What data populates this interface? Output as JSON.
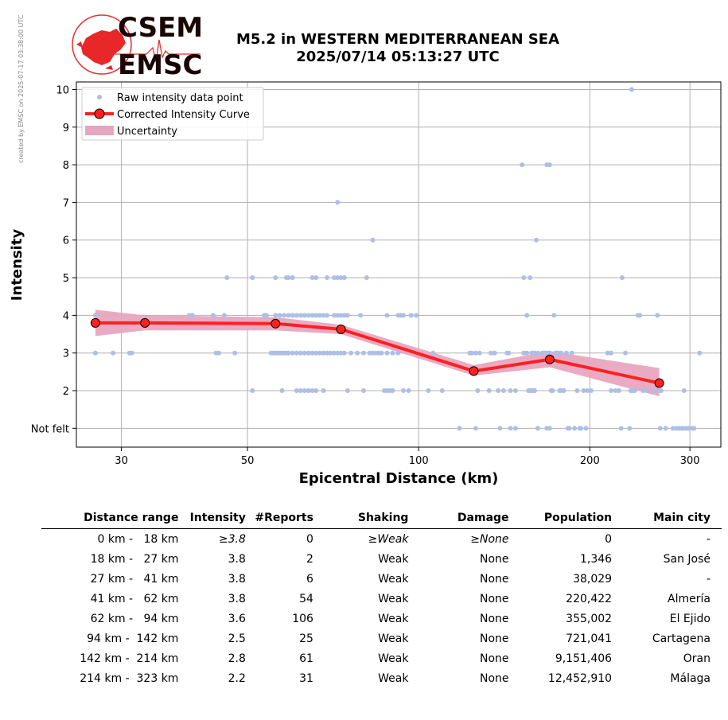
{
  "side_note": "created by EMSC on 2025-07-17 03:38:00 UTC",
  "logo": {
    "top_text": "CSEM",
    "bottom_text": "EMSC"
  },
  "title": {
    "line1": "M5.2 in WESTERN MEDITERRANEAN SEA",
    "line2": "2025/07/14 05:13:27 UTC"
  },
  "colors": {
    "raw": "#aebfe6",
    "curve": "#ff2020",
    "uncertainty": "#e7a6c0",
    "grid": "#b0b0b0"
  },
  "chart_data": {
    "type": "scatter",
    "x_scale": "log",
    "xlabel": "Epicentral Distance (km)",
    "ylabel": "Intensity",
    "xlim": [
      25,
      340
    ],
    "ylim": [
      0.5,
      10.2
    ],
    "xticks": [
      30,
      50,
      100,
      200,
      300
    ],
    "yticks": [
      {
        "v": 1,
        "label": "Not felt"
      },
      {
        "v": 2,
        "label": "2"
      },
      {
        "v": 3,
        "label": "3"
      },
      {
        "v": 4,
        "label": "4"
      },
      {
        "v": 5,
        "label": "5"
      },
      {
        "v": 6,
        "label": "6"
      },
      {
        "v": 7,
        "label": "7"
      },
      {
        "v": 8,
        "label": "8"
      },
      {
        "v": 9,
        "label": "9"
      },
      {
        "v": 10,
        "label": "10"
      }
    ],
    "grid": true,
    "legend": {
      "position": "top-left",
      "entries": [
        "Raw intensity data point",
        "Corrected Intensity Curve",
        "Uncertainty"
      ]
    },
    "curve": {
      "name": "Corrected Intensity Curve",
      "points": [
        [
          27,
          3.8
        ],
        [
          33,
          3.8
        ],
        [
          56,
          3.78
        ],
        [
          73,
          3.63
        ],
        [
          125,
          2.52
        ],
        [
          170,
          2.83
        ],
        [
          265,
          2.2
        ]
      ]
    },
    "uncertainty": {
      "name": "Uncertainty",
      "upper": [
        [
          27,
          4.15
        ],
        [
          33,
          4.0
        ],
        [
          56,
          3.95
        ],
        [
          73,
          3.75
        ],
        [
          125,
          2.68
        ],
        [
          170,
          3.05
        ],
        [
          265,
          2.6
        ]
      ],
      "lower": [
        [
          27,
          3.45
        ],
        [
          33,
          3.6
        ],
        [
          56,
          3.6
        ],
        [
          73,
          3.5
        ],
        [
          125,
          2.4
        ],
        [
          170,
          2.62
        ],
        [
          265,
          1.85
        ]
      ]
    },
    "raw_points": [
      [
        27,
        4
      ],
      [
        27,
        3
      ],
      [
        29,
        3
      ],
      [
        31,
        3
      ],
      [
        31.3,
        3
      ],
      [
        39.5,
        4
      ],
      [
        40,
        4
      ],
      [
        43.5,
        4
      ],
      [
        44,
        3
      ],
      [
        44.5,
        3
      ],
      [
        45.5,
        4
      ],
      [
        46,
        5
      ],
      [
        47.5,
        3
      ],
      [
        51,
        5
      ],
      [
        51,
        2
      ],
      [
        53.5,
        4
      ],
      [
        54,
        4
      ],
      [
        55,
        3
      ],
      [
        55.5,
        3
      ],
      [
        56,
        3
      ],
      [
        56.5,
        3
      ],
      [
        57,
        3
      ],
      [
        57.5,
        3
      ],
      [
        58,
        3
      ],
      [
        58.5,
        3
      ],
      [
        56,
        4
      ],
      [
        57,
        4
      ],
      [
        58,
        4
      ],
      [
        59,
        4
      ],
      [
        60,
        4
      ],
      [
        56,
        5
      ],
      [
        57.5,
        2
      ],
      [
        58.5,
        5
      ],
      [
        59,
        5
      ],
      [
        60,
        5
      ],
      [
        59,
        3
      ],
      [
        60,
        3
      ],
      [
        61,
        3
      ],
      [
        60,
        4
      ],
      [
        61,
        4
      ],
      [
        62,
        4
      ],
      [
        61,
        2
      ],
      [
        62,
        2
      ],
      [
        63,
        2
      ],
      [
        64,
        2
      ],
      [
        65,
        2
      ],
      [
        66,
        2
      ],
      [
        68,
        2
      ],
      [
        62,
        3
      ],
      [
        63,
        3
      ],
      [
        64,
        3
      ],
      [
        65,
        3
      ],
      [
        66,
        3
      ],
      [
        67,
        3
      ],
      [
        68,
        3
      ],
      [
        69,
        3
      ],
      [
        63,
        4
      ],
      [
        64,
        4
      ],
      [
        65,
        4
      ],
      [
        66,
        4
      ],
      [
        67,
        4
      ],
      [
        68,
        4
      ],
      [
        69,
        4
      ],
      [
        65,
        5
      ],
      [
        66,
        5
      ],
      [
        69,
        5
      ],
      [
        70,
        3
      ],
      [
        71,
        3
      ],
      [
        72,
        3
      ],
      [
        73,
        3
      ],
      [
        74,
        3
      ],
      [
        71,
        4
      ],
      [
        72,
        4
      ],
      [
        73,
        4
      ],
      [
        74,
        4
      ],
      [
        75,
        4
      ],
      [
        71,
        5
      ],
      [
        72,
        5
      ],
      [
        73,
        5
      ],
      [
        74,
        5
      ],
      [
        72,
        7
      ],
      [
        75,
        2
      ],
      [
        76,
        3
      ],
      [
        78,
        3
      ],
      [
        80,
        3
      ],
      [
        79,
        4
      ],
      [
        80,
        2
      ],
      [
        81,
        5
      ],
      [
        82,
        3
      ],
      [
        83,
        3
      ],
      [
        84,
        3
      ],
      [
        83,
        6
      ],
      [
        85,
        3
      ],
      [
        86,
        3
      ],
      [
        87,
        2
      ],
      [
        88,
        2
      ],
      [
        89,
        2
      ],
      [
        90,
        2
      ],
      [
        88,
        3
      ],
      [
        90,
        3
      ],
      [
        92,
        3
      ],
      [
        88,
        4
      ],
      [
        92,
        4
      ],
      [
        93,
        4
      ],
      [
        94,
        4
      ],
      [
        94,
        2
      ],
      [
        96,
        2
      ],
      [
        97,
        4
      ],
      [
        99,
        4
      ],
      [
        104,
        2
      ],
      [
        106,
        3
      ],
      [
        110,
        2
      ],
      [
        118,
        1
      ],
      [
        123,
        3
      ],
      [
        124,
        3
      ],
      [
        126,
        3
      ],
      [
        127,
        2
      ],
      [
        128,
        3
      ],
      [
        126,
        1
      ],
      [
        133,
        2
      ],
      [
        134,
        3
      ],
      [
        136,
        3
      ],
      [
        138,
        2
      ],
      [
        139,
        1
      ],
      [
        141,
        2
      ],
      [
        143,
        3
      ],
      [
        144,
        3
      ],
      [
        145,
        2
      ],
      [
        148,
        2
      ],
      [
        145,
        1
      ],
      [
        148,
        1
      ],
      [
        152,
        8
      ],
      [
        153,
        3
      ],
      [
        154,
        3
      ],
      [
        155,
        3
      ],
      [
        156,
        2
      ],
      [
        157,
        2
      ],
      [
        158,
        2
      ],
      [
        159,
        2
      ],
      [
        160,
        2
      ],
      [
        153,
        5
      ],
      [
        157,
        5
      ],
      [
        155,
        4
      ],
      [
        158,
        3
      ],
      [
        159,
        3
      ],
      [
        160,
        3
      ],
      [
        162,
        3
      ],
      [
        161,
        6
      ],
      [
        162,
        1
      ],
      [
        165,
        3
      ],
      [
        166,
        3
      ],
      [
        167,
        3
      ],
      [
        168,
        3
      ],
      [
        169,
        3
      ],
      [
        170,
        3
      ],
      [
        168,
        8
      ],
      [
        170,
        8
      ],
      [
        168,
        1
      ],
      [
        170,
        1
      ],
      [
        171,
        2
      ],
      [
        172,
        2
      ],
      [
        173,
        4
      ],
      [
        174,
        3
      ],
      [
        175,
        3
      ],
      [
        176,
        3
      ],
      [
        178,
        3
      ],
      [
        177,
        2
      ],
      [
        178,
        2
      ],
      [
        180,
        2
      ],
      [
        182,
        3
      ],
      [
        183,
        1
      ],
      [
        184,
        1
      ],
      [
        186,
        3
      ],
      [
        188,
        1
      ],
      [
        190,
        2
      ],
      [
        192,
        1
      ],
      [
        193,
        1
      ],
      [
        195,
        2
      ],
      [
        197,
        1
      ],
      [
        198,
        2
      ],
      [
        201,
        2
      ],
      [
        215,
        3
      ],
      [
        218,
        3
      ],
      [
        218,
        2
      ],
      [
        222,
        2
      ],
      [
        225,
        2
      ],
      [
        227,
        1
      ],
      [
        228,
        5
      ],
      [
        231,
        3
      ],
      [
        235,
        1
      ],
      [
        236,
        2
      ],
      [
        237,
        10
      ],
      [
        238,
        2
      ],
      [
        240,
        2
      ],
      [
        243,
        4
      ],
      [
        245,
        4
      ],
      [
        248,
        2
      ],
      [
        252,
        2
      ],
      [
        260,
        2
      ],
      [
        263,
        4
      ],
      [
        265,
        2
      ],
      [
        266,
        1
      ],
      [
        267,
        2
      ],
      [
        272,
        1
      ],
      [
        280,
        1
      ],
      [
        284,
        1
      ],
      [
        287,
        1
      ],
      [
        290,
        1
      ],
      [
        292,
        1
      ],
      [
        293,
        2
      ],
      [
        295,
        1
      ],
      [
        298,
        1
      ],
      [
        303,
        1
      ],
      [
        305,
        1
      ],
      [
        312,
        3
      ]
    ]
  },
  "table": {
    "headers": [
      "Distance range",
      "Intensity",
      "#Reports",
      "Shaking",
      "Damage",
      "Population",
      "Main city"
    ],
    "rows": [
      {
        "range": "0 km -   18 km",
        "intensity": "≥3.8",
        "reports": "0",
        "shaking": "≥Weak",
        "damage": "≥None",
        "population": "0",
        "city": "-",
        "italic": true
      },
      {
        "range": "18 km -   27 km",
        "intensity": "3.8",
        "reports": "2",
        "shaking": "Weak",
        "damage": "None",
        "population": "1,346",
        "city": "San José"
      },
      {
        "range": "27 km -   41 km",
        "intensity": "3.8",
        "reports": "6",
        "shaking": "Weak",
        "damage": "None",
        "population": "38,029",
        "city": "-"
      },
      {
        "range": "41 km -   62 km",
        "intensity": "3.8",
        "reports": "54",
        "shaking": "Weak",
        "damage": "None",
        "population": "220,422",
        "city": "Almería"
      },
      {
        "range": "62 km -   94 km",
        "intensity": "3.6",
        "reports": "106",
        "shaking": "Weak",
        "damage": "None",
        "population": "355,002",
        "city": "El Ejido"
      },
      {
        "range": "94 km -  142 km",
        "intensity": "2.5",
        "reports": "25",
        "shaking": "Weak",
        "damage": "None",
        "population": "721,041",
        "city": "Cartagena"
      },
      {
        "range": "142 km -  214 km",
        "intensity": "2.8",
        "reports": "61",
        "shaking": "Weak",
        "damage": "None",
        "population": "9,151,406",
        "city": "Oran"
      },
      {
        "range": "214 km -  323 km",
        "intensity": "2.2",
        "reports": "31",
        "shaking": "Weak",
        "damage": "None",
        "population": "12,452,910",
        "city": "Málaga"
      }
    ]
  }
}
